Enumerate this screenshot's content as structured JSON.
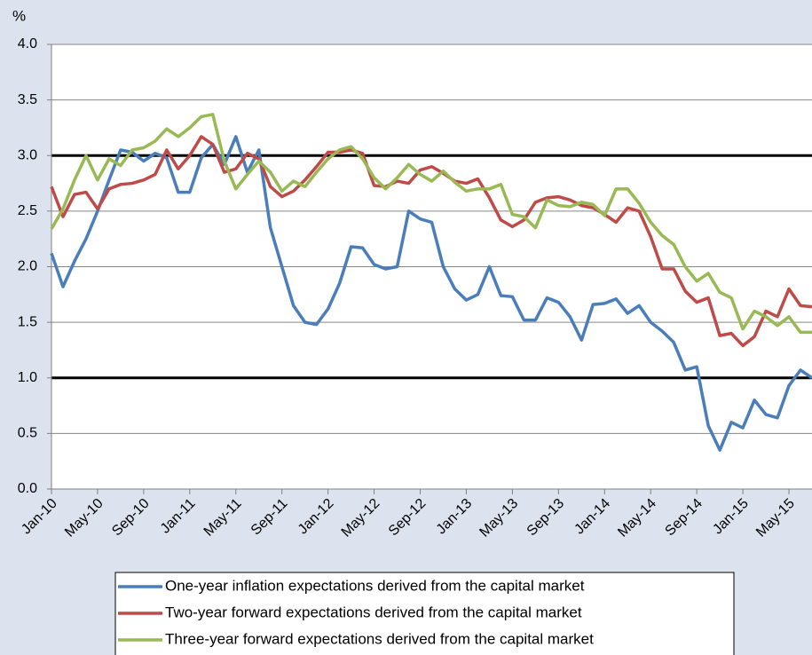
{
  "chart_data": {
    "type": "line",
    "y_label": "%",
    "categories": [
      "Jan-10",
      null,
      null,
      null,
      "May-10",
      null,
      null,
      null,
      "Sep-10",
      null,
      null,
      null,
      "Jan-11",
      null,
      null,
      null,
      "May-11",
      null,
      null,
      null,
      "Sep-11",
      null,
      null,
      null,
      "Jan-12",
      null,
      null,
      null,
      "May-12",
      null,
      null,
      null,
      "Sep-12",
      null,
      null,
      null,
      "Jan-13",
      null,
      null,
      null,
      "May-13",
      null,
      null,
      null,
      "Sep-13",
      null,
      null,
      null,
      "Jan-14",
      null,
      null,
      null,
      "May-14",
      null,
      null,
      null,
      "Sep-14",
      null,
      null,
      null,
      "Jan-15",
      null,
      null,
      null,
      "May-15",
      null,
      null
    ],
    "series": [
      {
        "name": "One-year inflation expectations derived from the capital market",
        "color": "#4a7ebb",
        "values": [
          2.12,
          1.82,
          2.05,
          2.25,
          2.5,
          2.78,
          3.05,
          3.03,
          2.95,
          3.02,
          2.98,
          2.67,
          2.67,
          2.98,
          3.1,
          2.92,
          3.17,
          2.85,
          3.05,
          2.35,
          2.0,
          1.65,
          1.5,
          1.48,
          1.62,
          1.85,
          2.18,
          2.17,
          2.02,
          1.98,
          2.0,
          2.5,
          2.43,
          2.4,
          2.0,
          1.8,
          1.7,
          1.75,
          2.0,
          1.74,
          1.73,
          1.52,
          1.52,
          1.72,
          1.68,
          1.55,
          1.34,
          1.66,
          1.67,
          1.71,
          1.58,
          1.65,
          1.5,
          1.42,
          1.32,
          1.07,
          1.1,
          0.57,
          0.35,
          0.6,
          0.55,
          0.8,
          0.67,
          0.64,
          0.93,
          1.07,
          1.0
        ]
      },
      {
        "name": "Two-year forward expectations derived from the capital market",
        "color": "#be4b48",
        "values": [
          2.72,
          2.45,
          2.65,
          2.67,
          2.52,
          2.7,
          2.74,
          2.75,
          2.78,
          2.83,
          3.05,
          2.88,
          3.0,
          3.17,
          3.1,
          2.85,
          2.88,
          3.02,
          2.97,
          2.72,
          2.63,
          2.68,
          2.78,
          2.9,
          3.03,
          3.03,
          3.05,
          3.02,
          2.73,
          2.72,
          2.77,
          2.75,
          2.87,
          2.9,
          2.84,
          2.77,
          2.75,
          2.79,
          2.62,
          2.42,
          2.36,
          2.42,
          2.58,
          2.62,
          2.63,
          2.6,
          2.55,
          2.53,
          2.47,
          2.4,
          2.53,
          2.5,
          2.27,
          1.98,
          1.98,
          1.78,
          1.68,
          1.72,
          1.38,
          1.4,
          1.29,
          1.37,
          1.6,
          1.55,
          1.8,
          1.65,
          1.64
        ]
      },
      {
        "name": "Three-year forward expectations derived from the capital market",
        "color": "#98b954",
        "values": [
          2.34,
          2.52,
          2.78,
          3.0,
          2.78,
          2.97,
          2.91,
          3.05,
          3.07,
          3.13,
          3.24,
          3.17,
          3.25,
          3.35,
          3.37,
          2.95,
          2.7,
          2.83,
          2.95,
          2.85,
          2.68,
          2.77,
          2.72,
          2.85,
          2.97,
          3.05,
          3.08,
          2.97,
          2.8,
          2.7,
          2.8,
          2.92,
          2.83,
          2.77,
          2.86,
          2.76,
          2.68,
          2.7,
          2.7,
          2.74,
          2.47,
          2.45,
          2.35,
          2.6,
          2.55,
          2.54,
          2.58,
          2.56,
          2.46,
          2.7,
          2.7,
          2.57,
          2.4,
          2.28,
          2.2,
          2.0,
          1.87,
          1.94,
          1.77,
          1.72,
          1.44,
          1.6,
          1.55,
          1.47,
          1.55,
          1.41,
          1.41
        ]
      }
    ],
    "reference_lines": [
      3.0,
      1.0
    ],
    "ylim": [
      0,
      4
    ],
    "yticks": [
      {
        "value": 0,
        "label": "0.0"
      },
      {
        "value": 0.5,
        "label": "0.5"
      },
      {
        "value": 1,
        "label": "1.0"
      },
      {
        "value": 1.5,
        "label": "1.5"
      },
      {
        "value": 2,
        "label": "2.0"
      },
      {
        "value": 2.5,
        "label": "2.5"
      },
      {
        "value": 3,
        "label": "3.0"
      },
      {
        "value": 3.5,
        "label": "3.5"
      },
      {
        "value": 4,
        "label": "4.0"
      }
    ],
    "grid": true,
    "legend": "bottom"
  }
}
